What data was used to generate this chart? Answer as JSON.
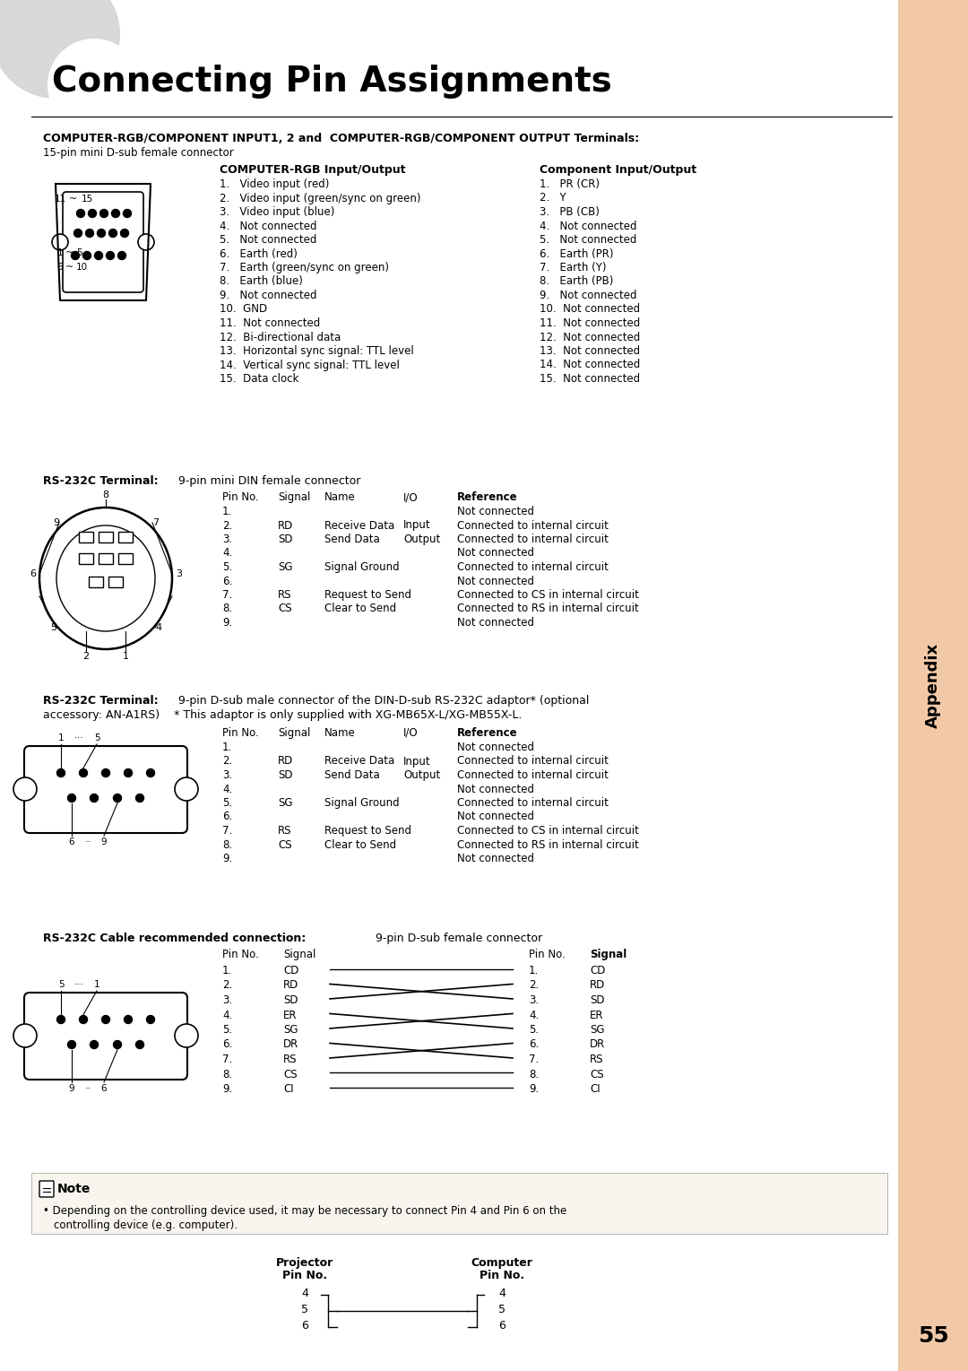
{
  "title": "Connecting Pin Assignments",
  "bg_color": "#ffffff",
  "sidebar_color": "#f2c9a8",
  "page_number": "55",
  "section1_header_bold": "COMPUTER-RGB/COMPONENT INPUT1, 2 and  COMPUTER-RGB/COMPONENT OUTPUT Terminals:",
  "section1_sub": "15-pin mini D-sub female connector",
  "rgb_header": "COMPUTER-RGB Input/Output",
  "comp_header": "Component Input/Output",
  "rgb_items": [
    "1.   Video input (red)",
    "2.   Video input (green/sync on green)",
    "3.   Video input (blue)",
    "4.   Not connected",
    "5.   Not connected",
    "6.   Earth (red)",
    "7.   Earth (green/sync on green)",
    "8.   Earth (blue)",
    "9.   Not connected",
    "10.  GND",
    "11.  Not connected",
    "12.  Bi-directional data",
    "13.  Horizontal sync signal: TTL level",
    "14.  Vertical sync signal: TTL level",
    "15.  Data clock"
  ],
  "comp_items": [
    "1.   PR (CR)",
    "2.   Y",
    "3.   PB (CB)",
    "4.   Not connected",
    "5.   Not connected",
    "6.   Earth (PR)",
    "7.   Earth (Y)",
    "8.   Earth (PB)",
    "9.   Not connected",
    "10.  Not connected",
    "11.  Not connected",
    "12.  Not connected",
    "13.  Not connected",
    "14.  Not connected",
    "15.  Not connected"
  ],
  "rs232_table_headers": [
    "Pin No.",
    "Signal",
    "Name",
    "I/O",
    "Reference"
  ],
  "rs232_rows": [
    [
      "1.",
      "",
      "",
      "",
      "Not connected"
    ],
    [
      "2.",
      "RD",
      "Receive Data",
      "Input",
      "Connected to internal circuit"
    ],
    [
      "3.",
      "SD",
      "Send Data",
      "Output",
      "Connected to internal circuit"
    ],
    [
      "4.",
      "",
      "",
      "",
      "Not connected"
    ],
    [
      "5.",
      "SG",
      "Signal Ground",
      "",
      "Connected to internal circuit"
    ],
    [
      "6.",
      "",
      "",
      "",
      "Not connected"
    ],
    [
      "7.",
      "RS",
      "Request to Send",
      "",
      "Connected to CS in internal circuit"
    ],
    [
      "8.",
      "CS",
      "Clear to Send",
      "",
      "Connected to RS in internal circuit"
    ],
    [
      "9.",
      "",
      "",
      "",
      "Not connected"
    ]
  ],
  "cable_signals": [
    "CD",
    "RD",
    "SD",
    "ER",
    "SG",
    "DR",
    "RS",
    "CS",
    "CI"
  ],
  "note_text": "Depending on the controlling device used, it may be necessary to connect Pin 4 and Pin 6 on the",
  "note_text2": "controlling device (e.g. computer).",
  "proj_pins": [
    "4",
    "5",
    "6"
  ],
  "comp_pins": [
    "4",
    "5",
    "6"
  ]
}
